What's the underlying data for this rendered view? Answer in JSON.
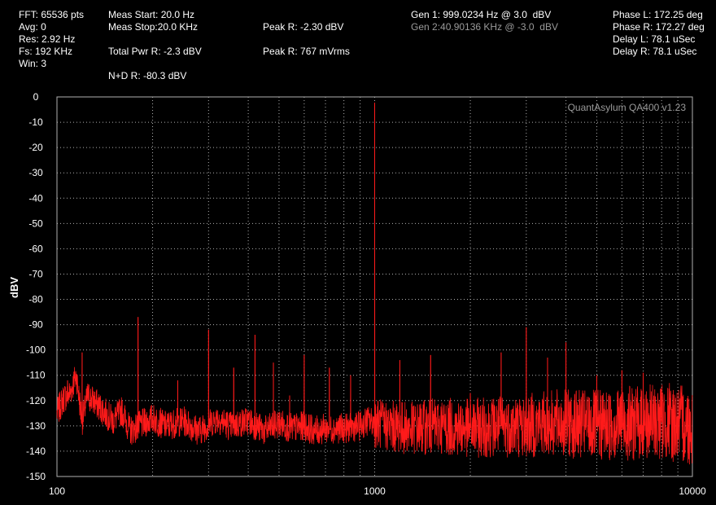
{
  "readouts": {
    "fft": "FFT: 65536 pts",
    "avg": "Avg: 0",
    "res": "Res: 2.92 Hz",
    "fs": "Fs: 192 KHz",
    "win": "Win: 3",
    "meas_start": "Meas Start: 20.0 Hz",
    "meas_stop": "Meas Stop:20.0 KHz",
    "total_pwr": "Total Pwr R: -2.3 dBV",
    "nd": "N+D R: -80.3 dBV",
    "peak_dbv": "Peak R: -2.30 dBV",
    "peak_mvrms": "Peak R: 767 mVrms",
    "gen1": "Gen 1: 999.0234 Hz @ 3.0  dBV",
    "gen2": "Gen 2:40.90136 KHz @ -3.0  dBV",
    "phase_l": "Phase L: 172.25 deg",
    "phase_r": "Phase R: 172.27 deg",
    "delay_l": "Delay L: 78.1 uSec",
    "delay_r": "Delay R: 78.1 uSec"
  },
  "colors": {
    "trace": "#ff1a1a",
    "grid": "#b0b0b0",
    "background": "#000000",
    "gen2_text": "#9a9a9a"
  },
  "chart_data": {
    "type": "line",
    "title": "",
    "watermark": "QuantAsylum QA400 v1.23",
    "xlabel": "",
    "ylabel": "dBV",
    "xscale": "log",
    "xlim": [
      100,
      10000
    ],
    "ylim": [
      -150,
      0
    ],
    "xticks": [
      100,
      1000,
      10000
    ],
    "yticks": [
      0,
      -10,
      -20,
      -30,
      -40,
      -50,
      -60,
      -70,
      -80,
      -90,
      -100,
      -110,
      -120,
      -130,
      -140,
      -150
    ],
    "grid": true,
    "noise_floor": [
      [
        100,
        -125
      ],
      [
        105,
        -119
      ],
      [
        110,
        -117
      ],
      [
        115,
        -110
      ],
      [
        120,
        -128
      ],
      [
        125,
        -118
      ],
      [
        135,
        -122
      ],
      [
        150,
        -128
      ],
      [
        160,
        -124
      ],
      [
        170,
        -132
      ],
      [
        200,
        -127
      ],
      [
        220,
        -130
      ],
      [
        250,
        -128
      ],
      [
        280,
        -132
      ],
      [
        320,
        -127
      ],
      [
        350,
        -130
      ],
      [
        400,
        -128
      ],
      [
        450,
        -132
      ],
      [
        500,
        -129
      ],
      [
        550,
        -131
      ],
      [
        600,
        -130
      ],
      [
        650,
        -132
      ],
      [
        700,
        -131
      ],
      [
        800,
        -131
      ],
      [
        900,
        -130
      ],
      [
        950,
        -128
      ],
      [
        1100,
        -130
      ],
      [
        1300,
        -131
      ],
      [
        1600,
        -130
      ],
      [
        2000,
        -131
      ],
      [
        2500,
        -130
      ],
      [
        3000,
        -130
      ],
      [
        3500,
        -129
      ],
      [
        4000,
        -129
      ],
      [
        5000,
        -130
      ],
      [
        6000,
        -129
      ],
      [
        7000,
        -129
      ],
      [
        8000,
        -128
      ],
      [
        10000,
        -130
      ]
    ],
    "peaks": [
      [
        108,
        -112
      ],
      [
        120,
        -101
      ],
      [
        180,
        -87
      ],
      [
        240,
        -112
      ],
      [
        300,
        -92
      ],
      [
        360,
        -107
      ],
      [
        420,
        -94
      ],
      [
        480,
        -105
      ],
      [
        540,
        -118
      ],
      [
        600,
        -102
      ],
      [
        720,
        -107
      ],
      [
        840,
        -110
      ],
      [
        1000,
        -2.3
      ],
      [
        1200,
        -104
      ],
      [
        1500,
        -102
      ],
      [
        2000,
        -117
      ],
      [
        2500,
        -101
      ],
      [
        3000,
        -91
      ],
      [
        3500,
        -103
      ],
      [
        4000,
        -97
      ],
      [
        5000,
        -110
      ],
      [
        6000,
        -108
      ],
      [
        7000,
        -109
      ]
    ]
  }
}
